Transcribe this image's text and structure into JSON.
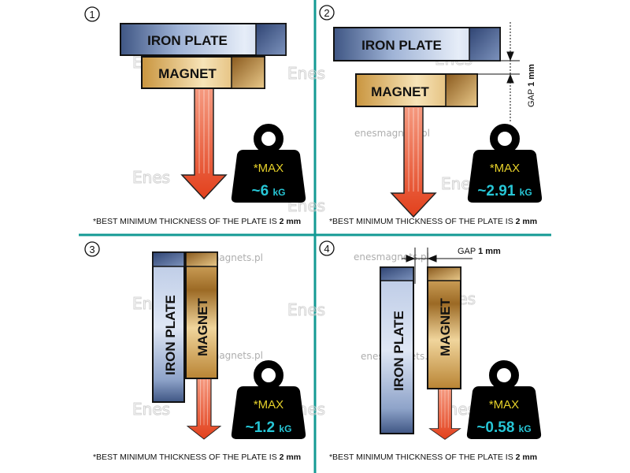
{
  "colors": {
    "divider": "#139a94",
    "iron": "#8ea6cc",
    "magnet": "#c9953f",
    "arrow": "#e2401c",
    "max_text": "#e6d12a",
    "value_text": "#27c6d6"
  },
  "watermark": {
    "url": "enesmagnets.pl",
    "logo": "Enes"
  },
  "panels": [
    {
      "number": "1",
      "iron_label": "IRON PLATE",
      "magnet_label": "MAGNET",
      "max_label": "*MAX",
      "value": "~6",
      "unit": "kG",
      "footnote": "*BEST MINIMUM THICKNESS OF THE PLATE IS ",
      "footnote_bold": "2 mm"
    },
    {
      "number": "2",
      "iron_label": "IRON PLATE",
      "magnet_label": "MAGNET",
      "gap_label": "GAP",
      "gap_value": "1 mm",
      "max_label": "*MAX",
      "value": "~2.91",
      "unit": "kG",
      "footnote": "*BEST MINIMUM THICKNESS OF THE PLATE IS ",
      "footnote_bold": "2 mm"
    },
    {
      "number": "3",
      "iron_label": "IRON  PLATE",
      "magnet_label": "MAGNET",
      "max_label": "*MAX",
      "value": "~1.2",
      "unit": "kG",
      "footnote": "*BEST MINIMUM THICKNESS OF THE PLATE IS ",
      "footnote_bold": "2 mm"
    },
    {
      "number": "4",
      "iron_label": "IRON PLATE",
      "magnet_label": "MAGNET",
      "gap_label": "GAP",
      "gap_value": "1 mm",
      "max_label": "*MAX",
      "value": "~0.58",
      "unit": "kG",
      "footnote": "*BEST MINIMUM THICKNESS OF THE PLATE IS ",
      "footnote_bold": "2 mm"
    }
  ]
}
